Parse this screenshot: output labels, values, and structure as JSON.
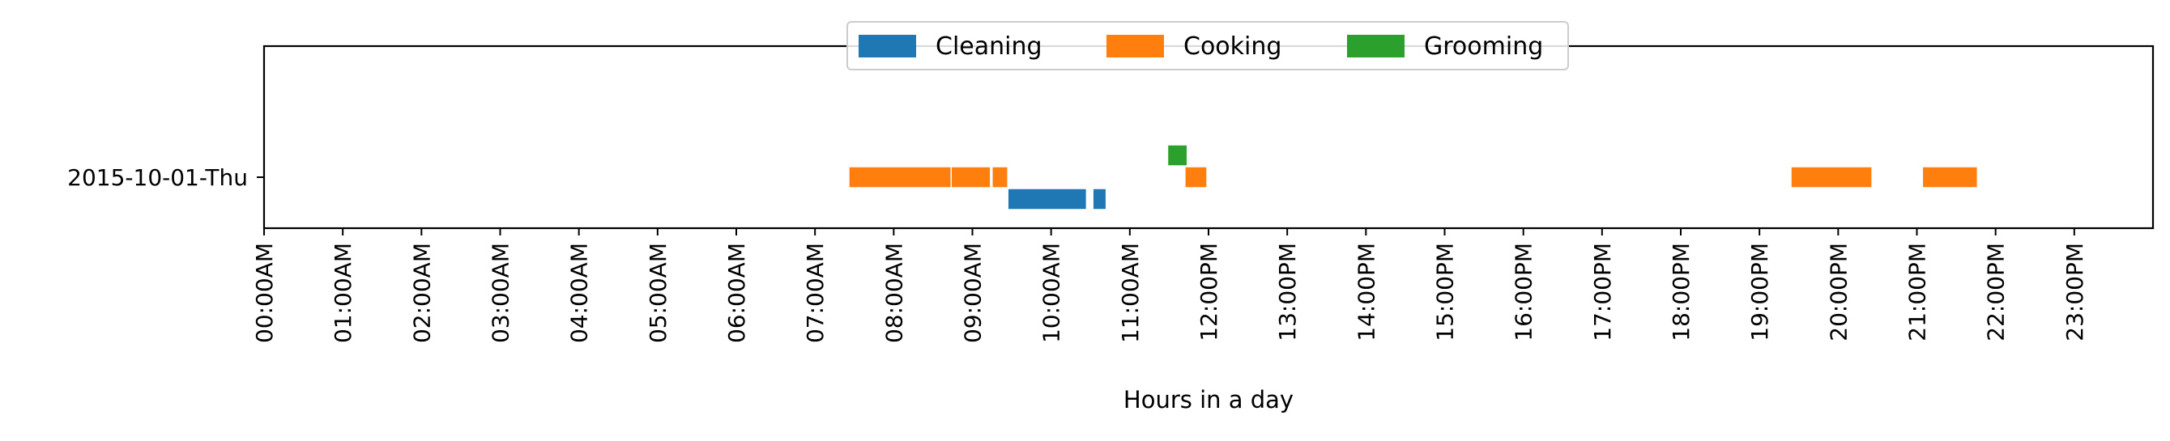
{
  "chart_data": {
    "type": "bar",
    "orientation": "horizontal-timeline",
    "title": "",
    "xlabel": "Hours in a day",
    "ylabel": "",
    "xlim": [
      0,
      24
    ],
    "categories": [
      "2015-10-01-Thu"
    ],
    "x_tick_labels": [
      "00:00AM",
      "01:00AM",
      "02:00AM",
      "03:00AM",
      "04:00AM",
      "05:00AM",
      "06:00AM",
      "07:00AM",
      "08:00AM",
      "09:00AM",
      "10:00AM",
      "11:00AM",
      "12:00PM",
      "13:00PM",
      "14:00PM",
      "15:00PM",
      "16:00PM",
      "17:00PM",
      "18:00PM",
      "19:00PM",
      "20:00PM",
      "21:00PM",
      "22:00PM",
      "23:00PM"
    ],
    "grid": false,
    "legend": {
      "placement": "top-center",
      "orientation": "horizontal"
    },
    "series": [
      {
        "name": "Cleaning",
        "color": "#1f77b4",
        "lane_offset": -0.15,
        "intervals": [
          [
            9.45,
            10.45
          ],
          [
            10.53,
            10.7
          ]
        ]
      },
      {
        "name": "Cooking",
        "color": "#ff7f0e",
        "lane_offset": 0,
        "intervals": [
          [
            7.43,
            8.73
          ],
          [
            8.73,
            9.23
          ],
          [
            9.25,
            9.45
          ],
          [
            11.7,
            11.98
          ],
          [
            19.4,
            20.43
          ],
          [
            21.07,
            21.77
          ]
        ]
      },
      {
        "name": "Grooming",
        "color": "#2ca02c",
        "lane_offset": 0.15,
        "intervals": [
          [
            11.48,
            11.73
          ]
        ]
      }
    ]
  }
}
